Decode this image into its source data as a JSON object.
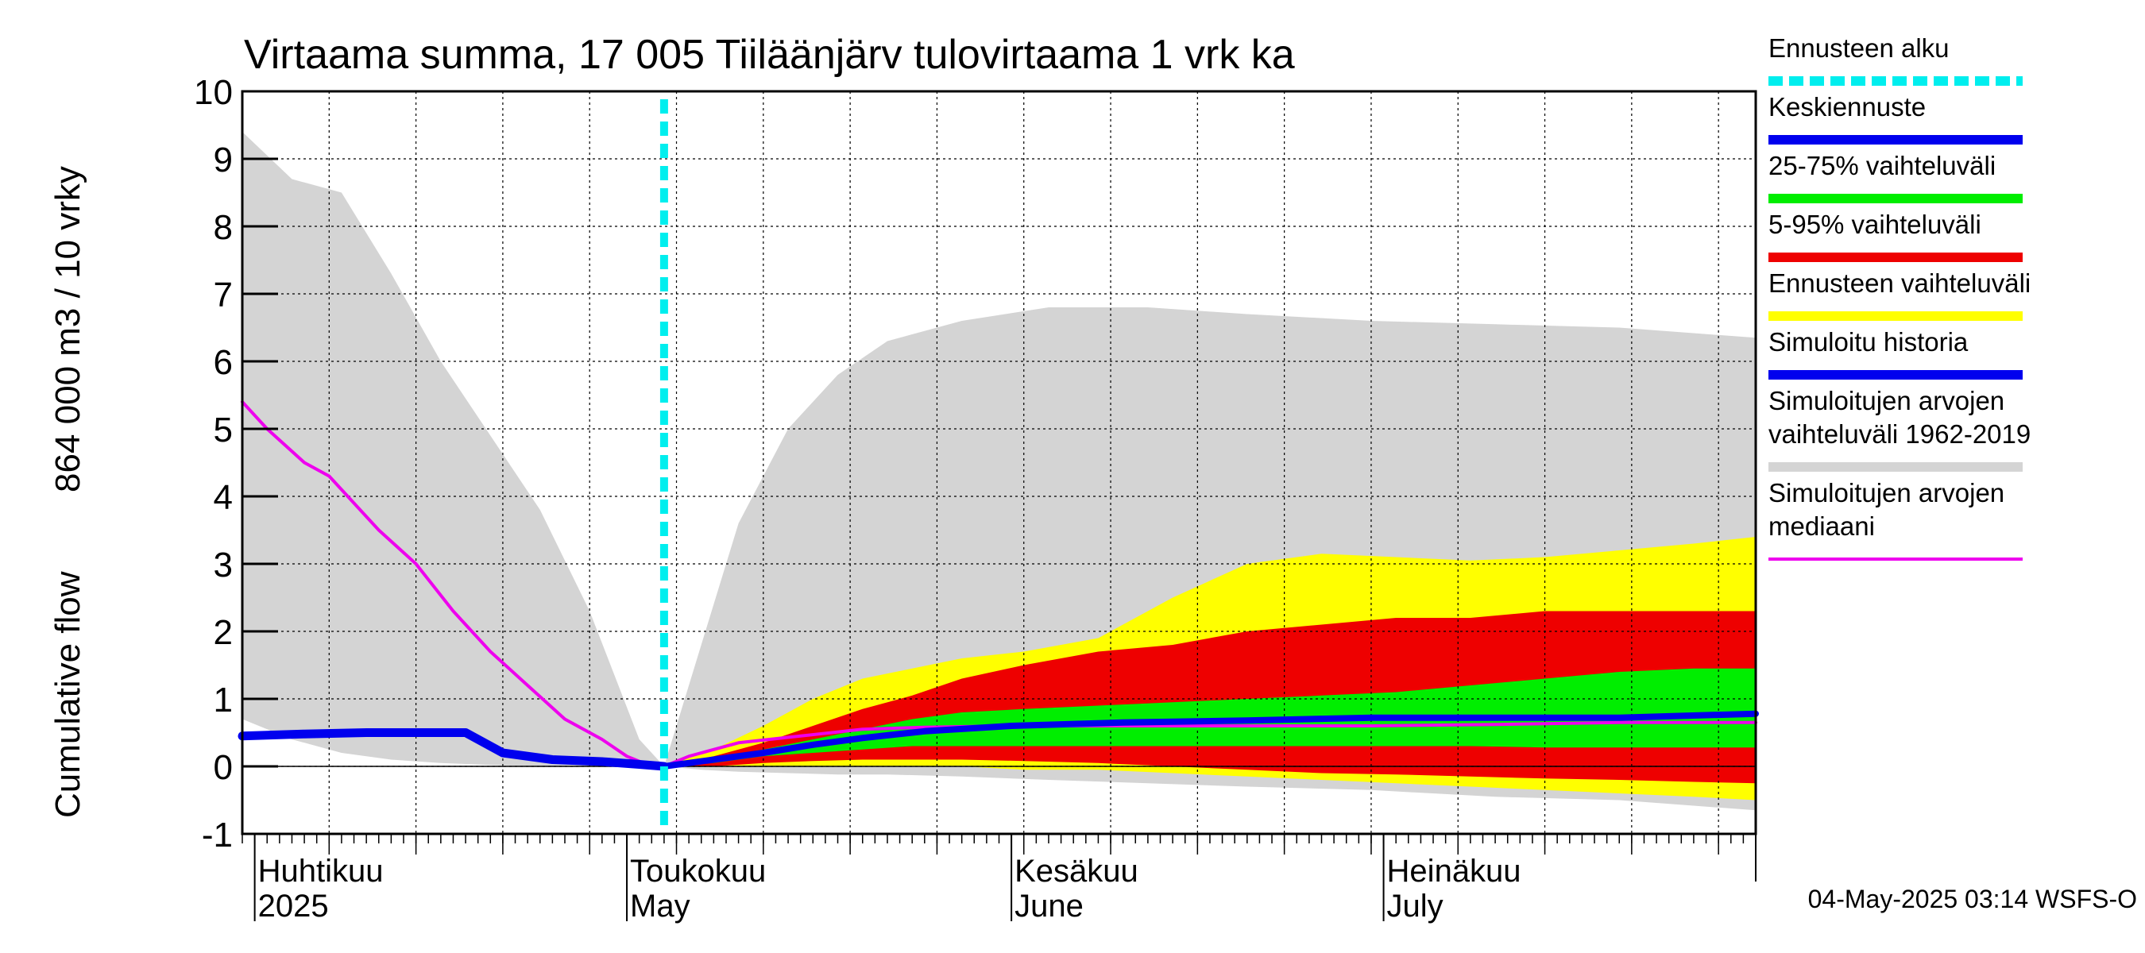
{
  "chart_data": {
    "type": "area",
    "title": "Virtaama summa, 17 005 Tiiläänjärv tulovirtaama 1 vrk ka",
    "ylabel_lines": [
      "Cumulative flow",
      "864 000 m3 / 10 vrky"
    ],
    "ylim": [
      -1,
      10
    ],
    "yticks": [
      "-1",
      "0",
      "1",
      "2",
      "3",
      "4",
      "5",
      "6",
      "7",
      "8",
      "9",
      "10"
    ],
    "xlim": [
      "2025-03-31",
      "2025-07-31"
    ],
    "x_month_labels": [
      {
        "date": "2025-04-01",
        "fi": "Huhtikuu",
        "en": "2025"
      },
      {
        "date": "2025-05-01",
        "fi": "Toukokuu",
        "en": "May"
      },
      {
        "date": "2025-06-01",
        "fi": "Kesäkuu",
        "en": "June"
      },
      {
        "date": "2025-07-01",
        "fi": "Heinäkuu",
        "en": "July"
      }
    ],
    "forecast_start": "2025-05-04",
    "grid": true,
    "legend_position": "right",
    "legend": [
      {
        "label": "Ennusteen alku",
        "color": "#00eeee",
        "style": "dashed"
      },
      {
        "label": "Keskiennuste",
        "color": "#0000ee",
        "style": "line"
      },
      {
        "label": "25-75% vaihteluväli",
        "color": "#00ee00",
        "style": "line"
      },
      {
        "label": "5-95% vaihteluväli",
        "color": "#ee0000",
        "style": "line"
      },
      {
        "label": "Ennusteen vaihteluväli",
        "color": "#ffff00",
        "style": "line"
      },
      {
        "label": "Simuloitu historia",
        "color": "#0000ee",
        "style": "line"
      },
      {
        "label": "Simuloitujen arvojen vaihteluväli 1962-2019",
        "color": "#d4d4d4",
        "style": "line"
      },
      {
        "label": "Simuloitujen arvojen mediaani",
        "color": "#ee00ee",
        "style": "thin"
      }
    ],
    "series": [
      {
        "name": "Simuloitujen arvojen vaihteluväli 1962-2019",
        "kind": "band",
        "color": "#d4d4d4",
        "x": [
          "2025-03-31",
          "2025-04-04",
          "2025-04-08",
          "2025-04-12",
          "2025-04-16",
          "2025-04-20",
          "2025-04-24",
          "2025-04-28",
          "2025-05-02",
          "2025-05-04",
          "2025-05-07",
          "2025-05-10",
          "2025-05-14",
          "2025-05-18",
          "2025-05-22",
          "2025-05-28",
          "2025-06-04",
          "2025-06-12",
          "2025-06-20",
          "2025-06-30",
          "2025-07-10",
          "2025-07-20",
          "2025-07-31"
        ],
        "low": [
          0.7,
          0.4,
          0.2,
          0.1,
          0.05,
          0.02,
          0.0,
          0.0,
          0.0,
          0.0,
          -0.05,
          -0.08,
          -0.1,
          -0.12,
          -0.12,
          -0.15,
          -0.2,
          -0.25,
          -0.3,
          -0.35,
          -0.45,
          -0.5,
          -0.65
        ],
        "high": [
          9.4,
          8.7,
          8.5,
          7.3,
          6.0,
          4.9,
          3.8,
          2.3,
          0.4,
          0.0,
          1.8,
          3.6,
          5.0,
          5.8,
          6.3,
          6.6,
          6.8,
          6.8,
          6.7,
          6.6,
          6.55,
          6.5,
          6.35
        ]
      },
      {
        "name": "Ennusteen vaihteluväli",
        "kind": "band",
        "color": "#ffff00",
        "x": [
          "2025-05-04",
          "2025-05-08",
          "2025-05-12",
          "2025-05-16",
          "2025-05-20",
          "2025-05-24",
          "2025-05-28",
          "2025-06-02",
          "2025-06-08",
          "2025-06-14",
          "2025-06-20",
          "2025-06-26",
          "2025-07-02",
          "2025-07-08",
          "2025-07-14",
          "2025-07-20",
          "2025-07-26",
          "2025-07-31"
        ],
        "low": [
          0.0,
          0.0,
          0.0,
          0.0,
          0.0,
          0.0,
          0.0,
          -0.05,
          -0.05,
          -0.1,
          -0.15,
          -0.2,
          -0.25,
          -0.3,
          -0.35,
          -0.4,
          -0.45,
          -0.5
        ],
        "high": [
          0.0,
          0.25,
          0.6,
          1.0,
          1.3,
          1.45,
          1.6,
          1.7,
          1.9,
          2.5,
          3.0,
          3.15,
          3.1,
          3.05,
          3.1,
          3.2,
          3.3,
          3.4
        ]
      },
      {
        "name": "5-95% vaihteluväli",
        "kind": "band",
        "color": "#ee0000",
        "x": [
          "2025-05-04",
          "2025-05-08",
          "2025-05-12",
          "2025-05-16",
          "2025-05-20",
          "2025-05-24",
          "2025-05-28",
          "2025-06-02",
          "2025-06-08",
          "2025-06-14",
          "2025-06-20",
          "2025-06-26",
          "2025-07-02",
          "2025-07-08",
          "2025-07-14",
          "2025-07-20",
          "2025-07-26",
          "2025-07-31"
        ],
        "low": [
          0.0,
          0.0,
          0.05,
          0.08,
          0.1,
          0.1,
          0.1,
          0.08,
          0.05,
          0.0,
          -0.05,
          -0.1,
          -0.12,
          -0.15,
          -0.18,
          -0.2,
          -0.23,
          -0.25
        ],
        "high": [
          0.0,
          0.15,
          0.35,
          0.6,
          0.85,
          1.05,
          1.3,
          1.5,
          1.7,
          1.8,
          2.0,
          2.1,
          2.2,
          2.2,
          2.3,
          2.3,
          2.3,
          2.3
        ]
      },
      {
        "name": "25-75% vaihteluväli",
        "kind": "band",
        "color": "#00ee00",
        "x": [
          "2025-05-04",
          "2025-05-08",
          "2025-05-12",
          "2025-05-16",
          "2025-05-20",
          "2025-05-24",
          "2025-05-28",
          "2025-06-02",
          "2025-06-08",
          "2025-06-14",
          "2025-06-20",
          "2025-06-26",
          "2025-07-02",
          "2025-07-08",
          "2025-07-14",
          "2025-07-20",
          "2025-07-26",
          "2025-07-31"
        ],
        "low": [
          0.0,
          0.05,
          0.15,
          0.2,
          0.25,
          0.3,
          0.3,
          0.3,
          0.3,
          0.3,
          0.3,
          0.3,
          0.3,
          0.3,
          0.28,
          0.28,
          0.28,
          0.28
        ],
        "high": [
          0.0,
          0.12,
          0.25,
          0.4,
          0.55,
          0.7,
          0.8,
          0.85,
          0.9,
          0.95,
          1.0,
          1.05,
          1.1,
          1.2,
          1.3,
          1.4,
          1.45,
          1.45
        ]
      },
      {
        "name": "Simuloitujen arvojen mediaani",
        "kind": "line",
        "color": "#ee00ee",
        "width": 4,
        "x": [
          "2025-03-31",
          "2025-04-02",
          "2025-04-05",
          "2025-04-07",
          "2025-04-09",
          "2025-04-11",
          "2025-04-14",
          "2025-04-17",
          "2025-04-20",
          "2025-04-23",
          "2025-04-26",
          "2025-04-29",
          "2025-05-01",
          "2025-05-03",
          "2025-05-04",
          "2025-05-06",
          "2025-05-10",
          "2025-05-15",
          "2025-05-20",
          "2025-05-25",
          "2025-06-01",
          "2025-06-10",
          "2025-06-20",
          "2025-06-30",
          "2025-07-10",
          "2025-07-20",
          "2025-07-31"
        ],
        "y": [
          5.4,
          5.0,
          4.5,
          4.3,
          3.9,
          3.5,
          3.0,
          2.3,
          1.7,
          1.2,
          0.7,
          0.4,
          0.15,
          0.0,
          0.0,
          0.15,
          0.35,
          0.45,
          0.55,
          0.58,
          0.6,
          0.6,
          0.6,
          0.6,
          0.62,
          0.65,
          0.65
        ]
      },
      {
        "name": "Simuloitu historia",
        "kind": "line",
        "color": "#0000ee",
        "width": 11,
        "x": [
          "2025-03-31",
          "2025-04-05",
          "2025-04-10",
          "2025-04-15",
          "2025-04-18",
          "2025-04-21",
          "2025-04-25",
          "2025-04-29",
          "2025-05-02",
          "2025-05-04"
        ],
        "y": [
          0.45,
          0.48,
          0.5,
          0.5,
          0.5,
          0.2,
          0.1,
          0.07,
          0.03,
          0.0
        ]
      },
      {
        "name": "Keskiennuste",
        "kind": "line",
        "color": "#0000ee",
        "width": 8,
        "x": [
          "2025-05-04",
          "2025-05-08",
          "2025-05-12",
          "2025-05-16",
          "2025-05-20",
          "2025-05-25",
          "2025-06-01",
          "2025-06-10",
          "2025-06-20",
          "2025-06-30",
          "2025-07-10",
          "2025-07-20",
          "2025-07-31"
        ],
        "y": [
          0.0,
          0.1,
          0.2,
          0.32,
          0.42,
          0.52,
          0.6,
          0.65,
          0.68,
          0.72,
          0.72,
          0.72,
          0.78
        ]
      }
    ]
  },
  "timestamp": "04-May-2025 03:14 WSFS-O"
}
